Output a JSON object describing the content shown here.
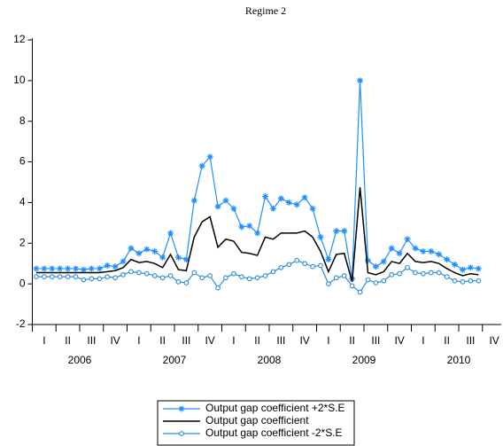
{
  "chart_data": {
    "type": "line",
    "title": "Regime 2",
    "x_quarter_labels": [
      "I",
      "II",
      "III",
      "IV",
      "I",
      "II",
      "III",
      "IV",
      "I",
      "II",
      "III",
      "IV",
      "I",
      "II",
      "III",
      "IV",
      "I",
      "II",
      "III",
      "IV"
    ],
    "x_year_labels": [
      "2006",
      "2007",
      "2008",
      "2009",
      "2010"
    ],
    "ylim": [
      -2,
      12
    ],
    "yticks": [
      -2,
      0,
      2,
      4,
      6,
      8,
      10,
      12
    ],
    "series": [
      {
        "name": "Output gap coefficient +2*S.E",
        "color": "#1f8fff",
        "marker": "star",
        "values": [
          0.75,
          0.75,
          0.75,
          0.75,
          0.75,
          0.75,
          0.7,
          0.75,
          0.75,
          0.9,
          0.85,
          1.1,
          1.75,
          1.5,
          1.7,
          1.6,
          1.3,
          2.5,
          1.3,
          1.2,
          4.1,
          5.8,
          6.25,
          3.8,
          4.1,
          3.7,
          2.8,
          2.85,
          2.5,
          4.3,
          3.7,
          4.2,
          4.0,
          3.9,
          4.25,
          3.7,
          2.3,
          1.2,
          2.6,
          2.6,
          0.25,
          10.0,
          1.15,
          0.85,
          1.1,
          1.75,
          1.5,
          2.2,
          1.75,
          1.6,
          1.6,
          1.45,
          1.2,
          0.95,
          0.7,
          0.8,
          0.75
        ]
      },
      {
        "name": "Output gap coefficient",
        "color": "#000000",
        "marker": "none",
        "values": [
          0.55,
          0.55,
          0.55,
          0.55,
          0.55,
          0.55,
          0.55,
          0.55,
          0.55,
          0.6,
          0.65,
          0.8,
          1.2,
          1.05,
          1.1,
          1.0,
          0.8,
          1.45,
          0.7,
          0.65,
          2.3,
          3.05,
          3.3,
          1.8,
          2.2,
          2.1,
          1.55,
          1.5,
          1.4,
          2.3,
          2.2,
          2.5,
          2.5,
          2.5,
          2.6,
          2.3,
          1.6,
          0.6,
          1.45,
          1.5,
          0.1,
          4.75,
          0.55,
          0.45,
          0.6,
          1.1,
          1.0,
          1.5,
          1.1,
          1.05,
          1.1,
          1.0,
          0.75,
          0.55,
          0.4,
          0.5,
          0.45
        ]
      },
      {
        "name": "Output gap coefficient -2*S.E",
        "color": "#2a8bd6",
        "marker": "circle",
        "values": [
          0.35,
          0.35,
          0.35,
          0.35,
          0.35,
          0.35,
          0.2,
          0.25,
          0.25,
          0.35,
          0.3,
          0.45,
          0.6,
          0.55,
          0.5,
          0.4,
          0.3,
          0.4,
          0.1,
          0.05,
          0.55,
          0.3,
          0.4,
          -0.2,
          0.3,
          0.5,
          0.35,
          0.25,
          0.3,
          0.4,
          0.6,
          0.8,
          0.95,
          1.15,
          1.0,
          0.85,
          0.9,
          0.0,
          0.3,
          0.4,
          -0.1,
          -0.4,
          0.2,
          0.05,
          0.15,
          0.45,
          0.5,
          0.8,
          0.55,
          0.5,
          0.55,
          0.55,
          0.35,
          0.15,
          0.1,
          0.15,
          0.15
        ]
      }
    ]
  }
}
